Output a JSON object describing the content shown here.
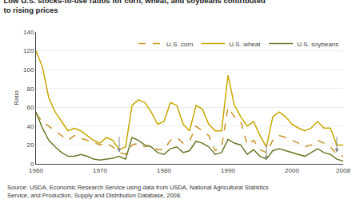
{
  "chart_data": {
    "type": "line",
    "title": "Low U.S. stocks-to-use ratios for corn, wheat, and soybeans contributed\nto rising prices",
    "y_label": "Ratio",
    "source": "Source: USDA, Economic Research Service using data from USDA, National Agricultural Statistics\nService, and Production, Supply and Distribution Database, 2008.",
    "x": [
      1960,
      1961,
      1962,
      1963,
      1964,
      1965,
      1966,
      1967,
      1968,
      1969,
      1970,
      1971,
      1972,
      1973,
      1974,
      1975,
      1976,
      1977,
      1978,
      1979,
      1980,
      1981,
      1982,
      1983,
      1984,
      1985,
      1986,
      1987,
      1988,
      1989,
      1990,
      1991,
      1992,
      1993,
      1994,
      1995,
      1996,
      1997,
      1998,
      1999,
      2000,
      2001,
      2002,
      2003,
      2004,
      2005,
      2006,
      2007,
      2008
    ],
    "series": [
      {
        "name": "U.S. corn",
        "color": "#c8922a",
        "line_style": "dashed",
        "values": [
          53,
          45,
          40,
          35,
          30,
          25,
          30,
          27,
          25,
          23,
          20,
          22,
          18,
          12,
          10,
          20,
          22,
          18,
          20,
          15,
          15,
          25,
          28,
          22,
          24,
          40,
          35,
          30,
          14,
          18,
          60,
          50,
          45,
          20,
          25,
          15,
          12,
          25,
          30,
          28,
          25,
          22,
          18,
          20,
          25,
          22,
          18,
          10,
          8
        ]
      },
      {
        "name": "U.S. wheat",
        "color": "#c8a800",
        "line_style": "solid",
        "values": [
          120,
          103,
          70,
          55,
          45,
          35,
          38,
          35,
          30,
          25,
          22,
          28,
          25,
          15,
          18,
          62,
          68,
          65,
          55,
          42,
          45,
          65,
          62,
          42,
          35,
          62,
          58,
          42,
          35,
          35,
          94,
          62,
          50,
          40,
          45,
          30,
          18,
          50,
          55,
          50,
          42,
          38,
          35,
          38,
          45,
          38,
          38,
          20,
          20
        ]
      },
      {
        "name": "U.S. soybeans",
        "color": "#6b7a2a",
        "line_style": "solid",
        "values": [
          55,
          38,
          25,
          18,
          12,
          8,
          8,
          10,
          8,
          5,
          4,
          5,
          6,
          8,
          5,
          28,
          25,
          20,
          18,
          12,
          10,
          16,
          18,
          12,
          14,
          24,
          22,
          18,
          10,
          12,
          26,
          22,
          20,
          10,
          15,
          8,
          5,
          14,
          16,
          14,
          12,
          10,
          8,
          12,
          16,
          12,
          10,
          5,
          3
        ]
      }
    ],
    "arrows": [
      {
        "x": 1973,
        "y": 12,
        "y_from": 30
      },
      {
        "x": 1996,
        "y": 4,
        "y_from": 22
      },
      {
        "x": 2007,
        "y": 12,
        "y_from": 30
      }
    ],
    "xlim": [
      1960,
      2008
    ],
    "xticks": [
      1960,
      1970,
      1980,
      1990,
      2000,
      2008
    ],
    "ylim": [
      0,
      140
    ],
    "yticks": [
      0,
      20,
      40,
      60,
      80,
      100,
      120,
      140
    ],
    "grid": "y",
    "legend": "upper right"
  }
}
